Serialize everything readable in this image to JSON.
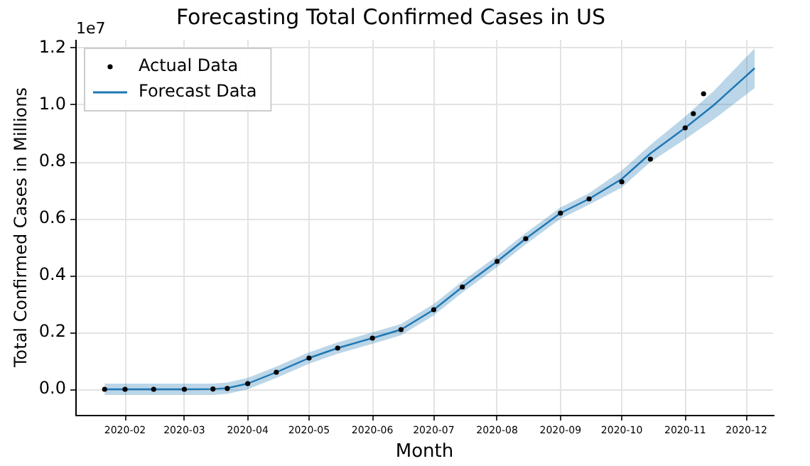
{
  "chart_data": {
    "type": "line",
    "title": "Forecasting Total Confirmed Cases in US",
    "xlabel": "Month",
    "ylabel": "Total Confirmed Cases in Millions",
    "annotations": [
      "1e7"
    ],
    "xlim": [
      "2020-01-08",
      "2020-12-14"
    ],
    "xticks": [
      "2020-02",
      "2020-03",
      "2020-04",
      "2020-05",
      "2020-06",
      "2020-07",
      "2020-08",
      "2020-09",
      "2020-10",
      "2020-11",
      "2020-12"
    ],
    "ylim": [
      -0.09,
      1.23
    ],
    "yticks": [
      {
        "value": 0,
        "label": "0.0"
      },
      0.2,
      0.4,
      0.6,
      0.8,
      {
        "value": 1,
        "label": "1.0"
      },
      {
        "value": 1.2,
        "label": "1.2"
      }
    ],
    "grid": true,
    "legend": "top left",
    "series": [
      {
        "name": "Actual Data",
        "type": "scatter",
        "marker": "circle",
        "color": "#000000",
        "x": [
          "2020-01-22",
          "2020-02-01",
          "2020-02-15",
          "2020-03-01",
          "2020-03-15",
          "2020-03-22",
          "2020-04-01",
          "2020-04-15",
          "2020-05-01",
          "2020-05-15",
          "2020-06-01",
          "2020-06-15",
          "2020-07-01",
          "2020-07-15",
          "2020-08-01",
          "2020-08-15",
          "2020-09-01",
          "2020-09-15",
          "2020-10-01",
          "2020-10-15",
          "2020-11-01",
          "2020-11-05",
          "2020-11-10"
        ],
        "values": [
          0,
          0,
          0,
          0,
          0.001,
          0.003,
          0.02,
          0.06,
          0.11,
          0.145,
          0.18,
          0.21,
          0.28,
          0.36,
          0.45,
          0.53,
          0.62,
          0.67,
          0.73,
          0.81,
          0.92,
          0.97,
          1.04
        ]
      },
      {
        "name": "Forecast Data",
        "color": "#1f77b4",
        "x": [
          "2020-01-22",
          "2020-02-01",
          "2020-02-15",
          "2020-03-01",
          "2020-03-15",
          "2020-03-22",
          "2020-04-01",
          "2020-04-15",
          "2020-05-01",
          "2020-05-15",
          "2020-06-01",
          "2020-06-15",
          "2020-07-01",
          "2020-07-15",
          "2020-08-01",
          "2020-08-15",
          "2020-09-01",
          "2020-09-15",
          "2020-10-01",
          "2020-10-15",
          "2020-11-01",
          "2020-11-15",
          "2020-12-05"
        ],
        "values": [
          0,
          0,
          0,
          0,
          0.001,
          0.004,
          0.02,
          0.06,
          0.11,
          0.145,
          0.18,
          0.21,
          0.28,
          0.36,
          0.45,
          0.53,
          0.62,
          0.67,
          0.74,
          0.83,
          0.92,
          1.0,
          1.13
        ],
        "lower": [
          -0.02,
          -0.02,
          -0.02,
          -0.02,
          -0.02,
          -0.016,
          0,
          0.04,
          0.09,
          0.125,
          0.16,
          0.19,
          0.26,
          0.34,
          0.43,
          0.51,
          0.6,
          0.65,
          0.71,
          0.8,
          0.88,
          0.95,
          1.06
        ],
        "upper": [
          0.02,
          0.02,
          0.02,
          0.02,
          0.02,
          0.024,
          0.04,
          0.08,
          0.13,
          0.165,
          0.2,
          0.23,
          0.3,
          0.38,
          0.47,
          0.55,
          0.64,
          0.69,
          0.77,
          0.86,
          0.96,
          1.05,
          1.2
        ]
      }
    ]
  }
}
